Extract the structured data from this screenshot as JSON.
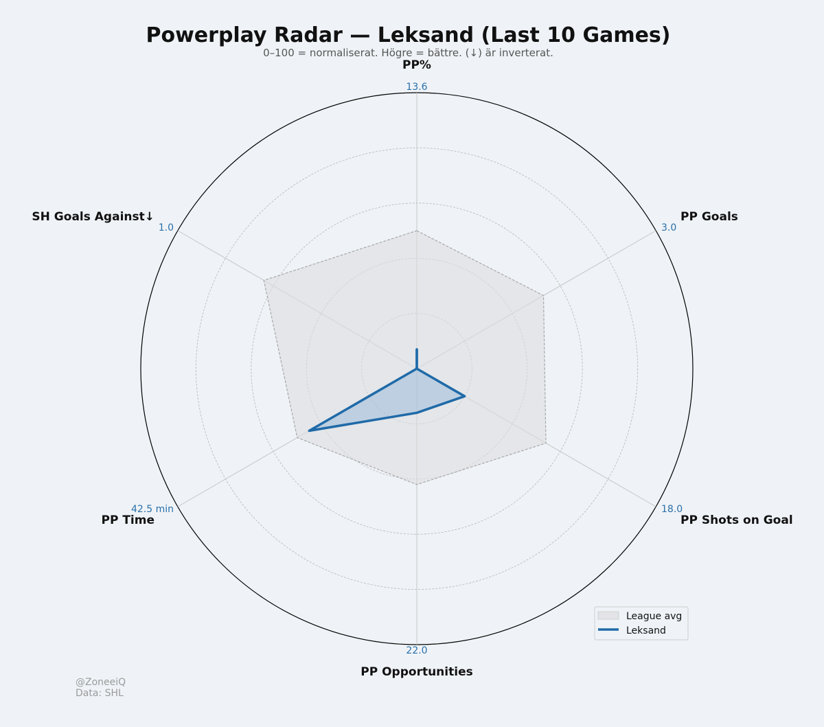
{
  "chart_data": {
    "type": "radar",
    "title": "Powerplay Radar — Leksand (Last 10 Games)",
    "subtitle": "0–100 = normaliserat. Högre = bättre. (↓) är inverterat.",
    "scale": [
      0,
      100
    ],
    "rings": [
      20,
      40,
      60,
      80,
      100
    ],
    "axes": [
      {
        "label": "PP%",
        "max_label": "13.6"
      },
      {
        "label": "PP Goals",
        "max_label": "3.0"
      },
      {
        "label": "PP Shots on Goal",
        "max_label": "18.0"
      },
      {
        "label": "PP Opportunities",
        "max_label": "22.0"
      },
      {
        "label": "PP Time",
        "max_label": "42.5 min"
      },
      {
        "label": "SH Goals Against↓",
        "max_label": "1.0"
      }
    ],
    "series": [
      {
        "name": "League avg",
        "values": [
          50,
          53,
          54,
          42,
          50,
          64
        ],
        "color": "#aaaaaa"
      },
      {
        "name": "Leksand",
        "values": [
          7,
          0,
          20,
          16,
          45,
          0
        ],
        "color": "#1f6aa8"
      }
    ],
    "legend_position": "lower-right"
  },
  "footer": {
    "handle": "@ZoneeiQ",
    "source": "Data: SHL"
  }
}
